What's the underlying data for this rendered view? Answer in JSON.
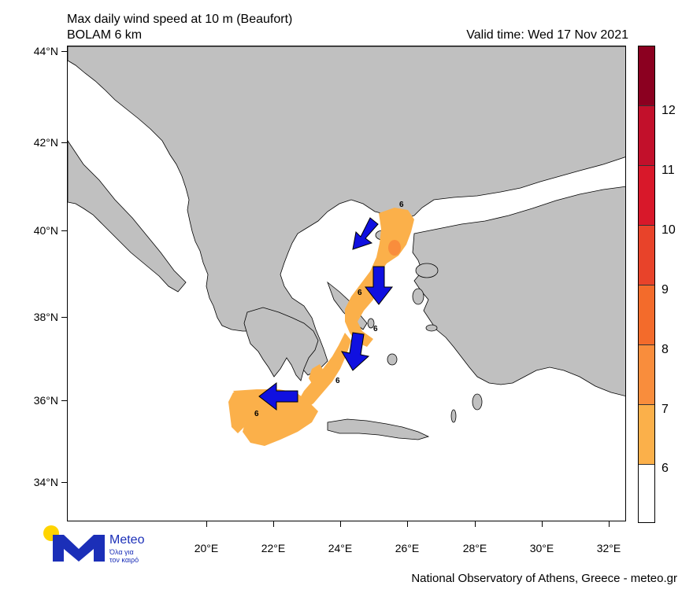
{
  "header": {
    "title": "Max daily wind speed at 10 m (Beaufort)",
    "model": "BOLAM 6 km",
    "valid_time": "Valid time: Wed 17 Nov 2021"
  },
  "axes": {
    "lat_labels": [
      "44°N",
      "42°N",
      "40°N",
      "38°N",
      "36°N",
      "34°N"
    ],
    "lon_labels": [
      "20°E",
      "22°E",
      "24°E",
      "26°E",
      "28°E",
      "30°E",
      "32°E"
    ]
  },
  "colorbar": {
    "labels": [
      "12",
      "11",
      "10",
      "9",
      "8",
      "7",
      "6"
    ],
    "colors": [
      "#8b0020",
      "#c2102b",
      "#d8182a",
      "#e8432a",
      "#f36b2b",
      "#f98d3c",
      "#fbb04a",
      "#ffffff"
    ]
  },
  "map": {
    "land_color": "#c0c0c0",
    "sea_color": "#ffffff",
    "wind_zone_color": "#fbb04a",
    "wind_zone_inner_color": "#f98d3c",
    "arrow_color": "#1010e0",
    "contour_labels": [
      "6",
      "6",
      "6",
      "6",
      "6"
    ]
  },
  "logo": {
    "name": "Meteo",
    "tagline_1": "Όλα για",
    "tagline_2": "τον καιρό",
    "dot_color": "#ffd400",
    "brand_color": "#1b2fb8"
  },
  "footer": {
    "credit": "National Observatory of Athens, Greece - meteo.gr"
  }
}
